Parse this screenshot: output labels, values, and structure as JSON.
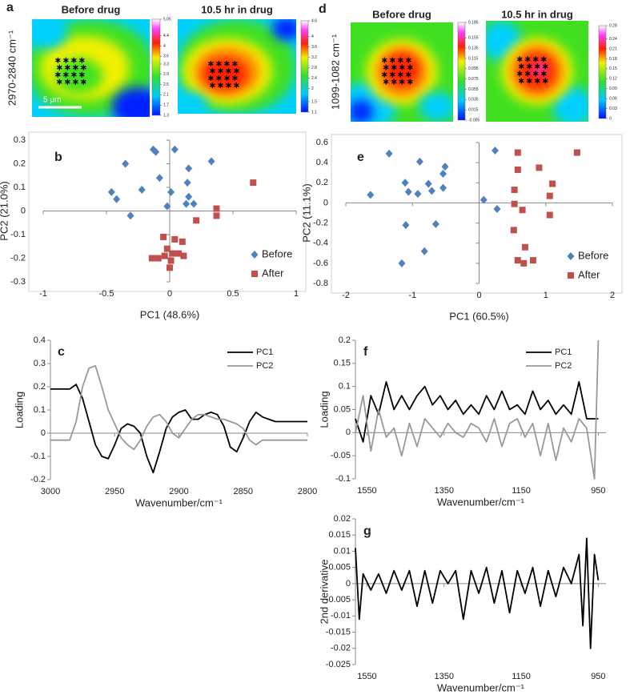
{
  "chart_data": [
    {
      "type": "heatmap",
      "panel": "a",
      "titles": [
        "Before drug",
        "10.5 hr in drug"
      ],
      "ylabel": "2970-2840 cm⁻¹",
      "scale_bar": "5 μm",
      "colorbars": [
        {
          "lim": [
            1.3,
            5.05
          ],
          "ticks": [
            1.3,
            1.7,
            2.1,
            2.5,
            2.9,
            3.3,
            3.6,
            4,
            4.4,
            5.05
          ]
        },
        {
          "lim": [
            1.1,
            4.6
          ],
          "ticks": [
            1.1,
            1.5,
            2,
            2.4,
            2.8,
            3.2,
            3.6,
            4,
            4.6
          ]
        }
      ]
    },
    {
      "type": "heatmap",
      "panel": "d",
      "titles": [
        "Before drug",
        "10.5 hr in drug"
      ],
      "ylabel": "1099-1082 cm⁻¹",
      "colorbars": [
        {
          "lim": [
            -0.005,
            0.185
          ],
          "ticks": [
            -0.005,
            0.015,
            0.035,
            0.055,
            0.075,
            0.095,
            0.115,
            0.135,
            0.155,
            0.185
          ]
        },
        {
          "lim": [
            0,
            0.28
          ],
          "ticks": [
            0,
            0.03,
            0.06,
            0.09,
            0.12,
            0.15,
            0.18,
            0.21,
            0.24,
            0.28
          ]
        }
      ]
    },
    {
      "type": "scatter",
      "panel": "b",
      "xlabel": "PC1 (48.6%)",
      "ylabel": "PC2 (21.0%)",
      "xlim": [
        -1,
        1
      ],
      "xticks": [
        -1,
        -0.5,
        0,
        0.5,
        1
      ],
      "ylim": [
        -0.3,
        0.3
      ],
      "yticks": [
        -0.3,
        -0.2,
        -0.1,
        0,
        0.1,
        0.2,
        0.3
      ],
      "legend": "lower right",
      "series": [
        {
          "name": "Before",
          "color": "#4f81bd",
          "marker": "diamond",
          "x": [
            -0.13,
            -0.11,
            0.04,
            -0.35,
            0.33,
            0.15,
            -0.08,
            -0.22,
            -0.46,
            0.01,
            0.14,
            -0.42,
            0.15,
            -0.02,
            -0.31,
            0.19,
            0.13
          ],
          "values": [
            0.26,
            0.25,
            0.26,
            0.2,
            0.21,
            0.18,
            0.14,
            0.09,
            0.08,
            0.08,
            0.12,
            0.05,
            0.06,
            0.02,
            -0.02,
            0.03,
            0.03
          ]
        },
        {
          "name": "After",
          "color": "#c0504d",
          "marker": "square",
          "x": [
            0.66,
            0.37,
            0.37,
            0.21,
            -0.05,
            0.04,
            0.1,
            -0.02,
            0.02,
            0.07,
            0.11,
            -0.04,
            -0.14,
            -0.09,
            0.01,
            0
          ],
          "values": [
            0.12,
            0.01,
            -0.02,
            -0.04,
            -0.11,
            -0.12,
            -0.13,
            -0.16,
            -0.18,
            -0.18,
            -0.19,
            -0.19,
            -0.2,
            -0.2,
            -0.21,
            -0.24
          ]
        }
      ]
    },
    {
      "type": "scatter",
      "panel": "e",
      "xlabel": "PC1 (60.5%)",
      "ylabel": "PC2 (11.1%)",
      "xlim": [
        -2,
        2
      ],
      "xticks": [
        -2,
        -1,
        0,
        1,
        2
      ],
      "ylim": [
        -0.8,
        0.6
      ],
      "yticks": [
        -0.8,
        -0.6,
        -0.4,
        -0.2,
        0,
        0.2,
        0.4,
        0.6
      ],
      "legend": "lower right",
      "series": [
        {
          "name": "Before",
          "color": "#4f81bd",
          "marker": "diamond",
          "x": [
            -1.63,
            -1.35,
            -0.89,
            -0.76,
            -0.71,
            -0.54,
            -0.51,
            -1.11,
            -1.06,
            -0.92,
            -0.54,
            0.07,
            0.24,
            0.27,
            -1.1,
            -0.65,
            -0.82,
            -1.16
          ],
          "values": [
            0.08,
            0.49,
            0.41,
            0.19,
            0.12,
            0.29,
            0.36,
            0.2,
            0.11,
            0.09,
            0.15,
            0.03,
            0.52,
            -0.06,
            -0.22,
            -0.21,
            -0.48,
            -0.6
          ]
        },
        {
          "name": "After",
          "color": "#c0504d",
          "marker": "square",
          "x": [
            0.58,
            1.47,
            0.58,
            0.9,
            1.1,
            0.53,
            1.06,
            0.53,
            0.65,
            1.06,
            0.52,
            0.69,
            0.58,
            0.67,
            0.81
          ],
          "values": [
            0.5,
            0.5,
            0.33,
            0.35,
            0.19,
            0.13,
            0.07,
            -0.01,
            -0.07,
            -0.12,
            -0.27,
            -0.44,
            -0.57,
            -0.6,
            -0.57
          ]
        }
      ]
    },
    {
      "type": "line",
      "panel": "c",
      "xlabel": "Wavenumber/cm⁻¹",
      "ylabel": "Loading",
      "xlim": [
        3000,
        2800
      ],
      "xticks": [
        3000,
        2950,
        2900,
        2850,
        2800
      ],
      "ylim": [
        -0.2,
        0.4
      ],
      "yticks": [
        -0.2,
        -0.1,
        0,
        0.1,
        0.2,
        0.3,
        0.4
      ],
      "legend": "upper right",
      "x": [
        3000,
        2995,
        2990,
        2985,
        2980,
        2975,
        2970,
        2965,
        2960,
        2955,
        2950,
        2945,
        2940,
        2935,
        2930,
        2925,
        2920,
        2915,
        2910,
        2905,
        2900,
        2895,
        2890,
        2885,
        2880,
        2875,
        2870,
        2865,
        2860,
        2855,
        2850,
        2845,
        2840,
        2835,
        2830,
        2825,
        2820,
        2815,
        2810,
        2805,
        2800
      ],
      "series": [
        {
          "name": "PC1",
          "color": "#000000",
          "values": [
            0.19,
            0.19,
            0.19,
            0.19,
            0.21,
            0.15,
            0.05,
            -0.05,
            -0.1,
            -0.11,
            -0.05,
            0.02,
            0.04,
            0.03,
            0,
            -0.1,
            -0.17,
            -0.08,
            0.02,
            0.07,
            0.09,
            0.1,
            0.06,
            0.06,
            0.08,
            0.09,
            0.08,
            0.03,
            -0.06,
            -0.08,
            -0.02,
            0.05,
            0.09,
            0.07,
            0.06,
            0.05,
            0.05,
            0.05,
            0.05,
            0.05,
            0.05
          ]
        },
        {
          "name": "PC2",
          "color": "#999999",
          "values": [
            -0.03,
            -0.03,
            -0.03,
            -0.03,
            0.05,
            0.2,
            0.28,
            0.29,
            0.2,
            0.1,
            0.04,
            -0.02,
            -0.05,
            -0.07,
            -0.03,
            0.03,
            0.07,
            0.08,
            0.05,
            0,
            -0.02,
            0.02,
            0.06,
            0.08,
            0.08,
            0.07,
            0.06,
            0.06,
            0.05,
            0.04,
            0.02,
            -0.03,
            -0.05,
            -0.03,
            -0.03,
            -0.03,
            -0.03,
            -0.03,
            -0.03,
            -0.03,
            -0.03
          ]
        }
      ]
    },
    {
      "type": "line",
      "panel": "f",
      "xlabel": "Wavenumber/cm⁻¹",
      "ylabel": "Loading",
      "xlim": [
        1580,
        930
      ],
      "xticks": [
        1550,
        1350,
        1150,
        950
      ],
      "ylim": [
        -0.1,
        0.2
      ],
      "yticks": [
        -0.1,
        -0.05,
        0,
        0.05,
        0.1,
        0.15,
        0.2
      ],
      "legend": "upper right",
      "x": [
        1580,
        1560,
        1540,
        1520,
        1500,
        1480,
        1460,
        1440,
        1420,
        1400,
        1380,
        1360,
        1340,
        1320,
        1300,
        1280,
        1260,
        1240,
        1220,
        1200,
        1180,
        1160,
        1140,
        1120,
        1100,
        1080,
        1060,
        1040,
        1020,
        1000,
        980,
        960,
        950
      ],
      "series": [
        {
          "name": "PC1",
          "color": "#000000",
          "values": [
            0.03,
            -0.02,
            0.08,
            0.04,
            0.11,
            0.05,
            0.08,
            0.05,
            0.08,
            0.1,
            0.06,
            0.08,
            0.05,
            0.07,
            0.04,
            0.06,
            0.04,
            0.08,
            0.05,
            0.09,
            0.05,
            0.06,
            0.04,
            0.09,
            0.05,
            0.07,
            0.04,
            0.06,
            0.04,
            0.11,
            0.03,
            0.03,
            0.03
          ]
        },
        {
          "name": "PC2",
          "color": "#999999",
          "values": [
            0,
            0.08,
            -0.04,
            0.05,
            -0.01,
            0.01,
            -0.05,
            0.02,
            -0.03,
            0.03,
            0.01,
            -0.01,
            0.02,
            0,
            -0.01,
            0.02,
            0.01,
            -0.02,
            0.03,
            -0.03,
            0.02,
            0.03,
            -0.01,
            0.02,
            -0.05,
            0.02,
            -0.06,
            0.01,
            -0.02,
            0.03,
            0.01,
            -0.1,
            0.2
          ]
        }
      ]
    },
    {
      "type": "line",
      "panel": "g",
      "xlabel": "Wavenumber/cm⁻¹",
      "ylabel": "2nd derivative",
      "xlim": [
        1580,
        930
      ],
      "xticks": [
        1550,
        1350,
        1150,
        950
      ],
      "ylim": [
        -0.025,
        0.02
      ],
      "yticks": [
        -0.025,
        -0.02,
        -0.015,
        -0.01,
        -0.005,
        0,
        0.005,
        0.01,
        0.015,
        0.02
      ],
      "x": [
        1580,
        1570,
        1560,
        1540,
        1520,
        1500,
        1480,
        1460,
        1440,
        1420,
        1400,
        1380,
        1360,
        1340,
        1320,
        1300,
        1280,
        1260,
        1240,
        1220,
        1200,
        1180,
        1160,
        1140,
        1120,
        1100,
        1080,
        1060,
        1040,
        1020,
        1000,
        990,
        980,
        970,
        960,
        950
      ],
      "series": [
        {
          "name": "2nd derivative",
          "color": "#000000",
          "values": [
            0.011,
            -0.011,
            0.003,
            -0.002,
            0.003,
            -0.003,
            0.004,
            -0.002,
            0.004,
            -0.007,
            0.004,
            -0.006,
            0.004,
            0,
            0.004,
            -0.011,
            0.004,
            -0.003,
            0.005,
            -0.006,
            0.004,
            -0.009,
            0.004,
            -0.003,
            0.005,
            -0.007,
            0.004,
            -0.004,
            0.005,
            0,
            0.009,
            -0.013,
            0.014,
            -0.02,
            0.009,
            0.001
          ]
        }
      ]
    }
  ]
}
